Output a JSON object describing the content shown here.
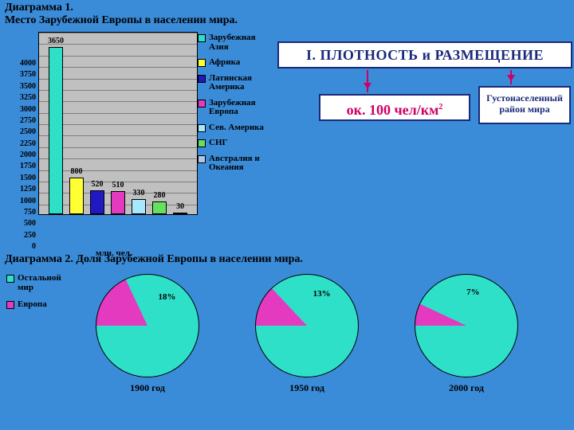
{
  "slide": {
    "background_color": "#3a8bd8"
  },
  "diagram1": {
    "title_a": "Диаграмма 1.",
    "title_b": "Место Зарубежной Европы в населении мира.",
    "type": "bar",
    "plot_bg": "#c0c0c0",
    "ylim": [
      0,
      4000
    ],
    "ytick_step": 250,
    "xlabel": "млн. чел.",
    "categories": [
      {
        "name": "Зарубежная Азия",
        "value": 3650,
        "color": "#2fe0c8"
      },
      {
        "name": "Африка",
        "value": 800,
        "color": "#ffff33"
      },
      {
        "name": "Латинская Америка",
        "value": 520,
        "color": "#2018c0"
      },
      {
        "name": "Зарубежная Европа",
        "value": 510,
        "color": "#e33ac0"
      },
      {
        "name": "Сев. Америка",
        "value": 330,
        "color": "#a8e8ff"
      },
      {
        "name": "СНГ",
        "value": 280,
        "color": "#66e060"
      },
      {
        "name": "Австралия и Океания",
        "value": 30,
        "color": "#b0c8e8"
      }
    ],
    "legend_title": null
  },
  "infobox": {
    "title": "I. ПЛОТНОСТЬ и РАЗМЕЩЕНИЕ",
    "density": "ок. 100 чел/км",
    "density_sup": "2",
    "region_a": "Густонаселенный",
    "region_b": "район мира",
    "border_color": "#1a2a7a",
    "accent_color": "#cc0066"
  },
  "diagram2": {
    "title": "Диаграмма 2. Доля Зарубежной Европы в населении мира.",
    "type": "pie",
    "legend": [
      {
        "label": "Остальной мир",
        "color": "#2fe0c8"
      },
      {
        "label": "Европа",
        "color": "#e33ac0"
      }
    ],
    "pies": [
      {
        "caption": "1900 год",
        "europe_pct": 18,
        "rest_color": "#2fe0c8",
        "europe_color": "#e33ac0"
      },
      {
        "caption": "1950 год",
        "europe_pct": 13,
        "rest_color": "#2fe0c8",
        "europe_color": "#e33ac0"
      },
      {
        "caption": "2000 год",
        "europe_pct": 7,
        "rest_color": "#2fe0c8",
        "europe_color": "#e33ac0"
      }
    ]
  }
}
